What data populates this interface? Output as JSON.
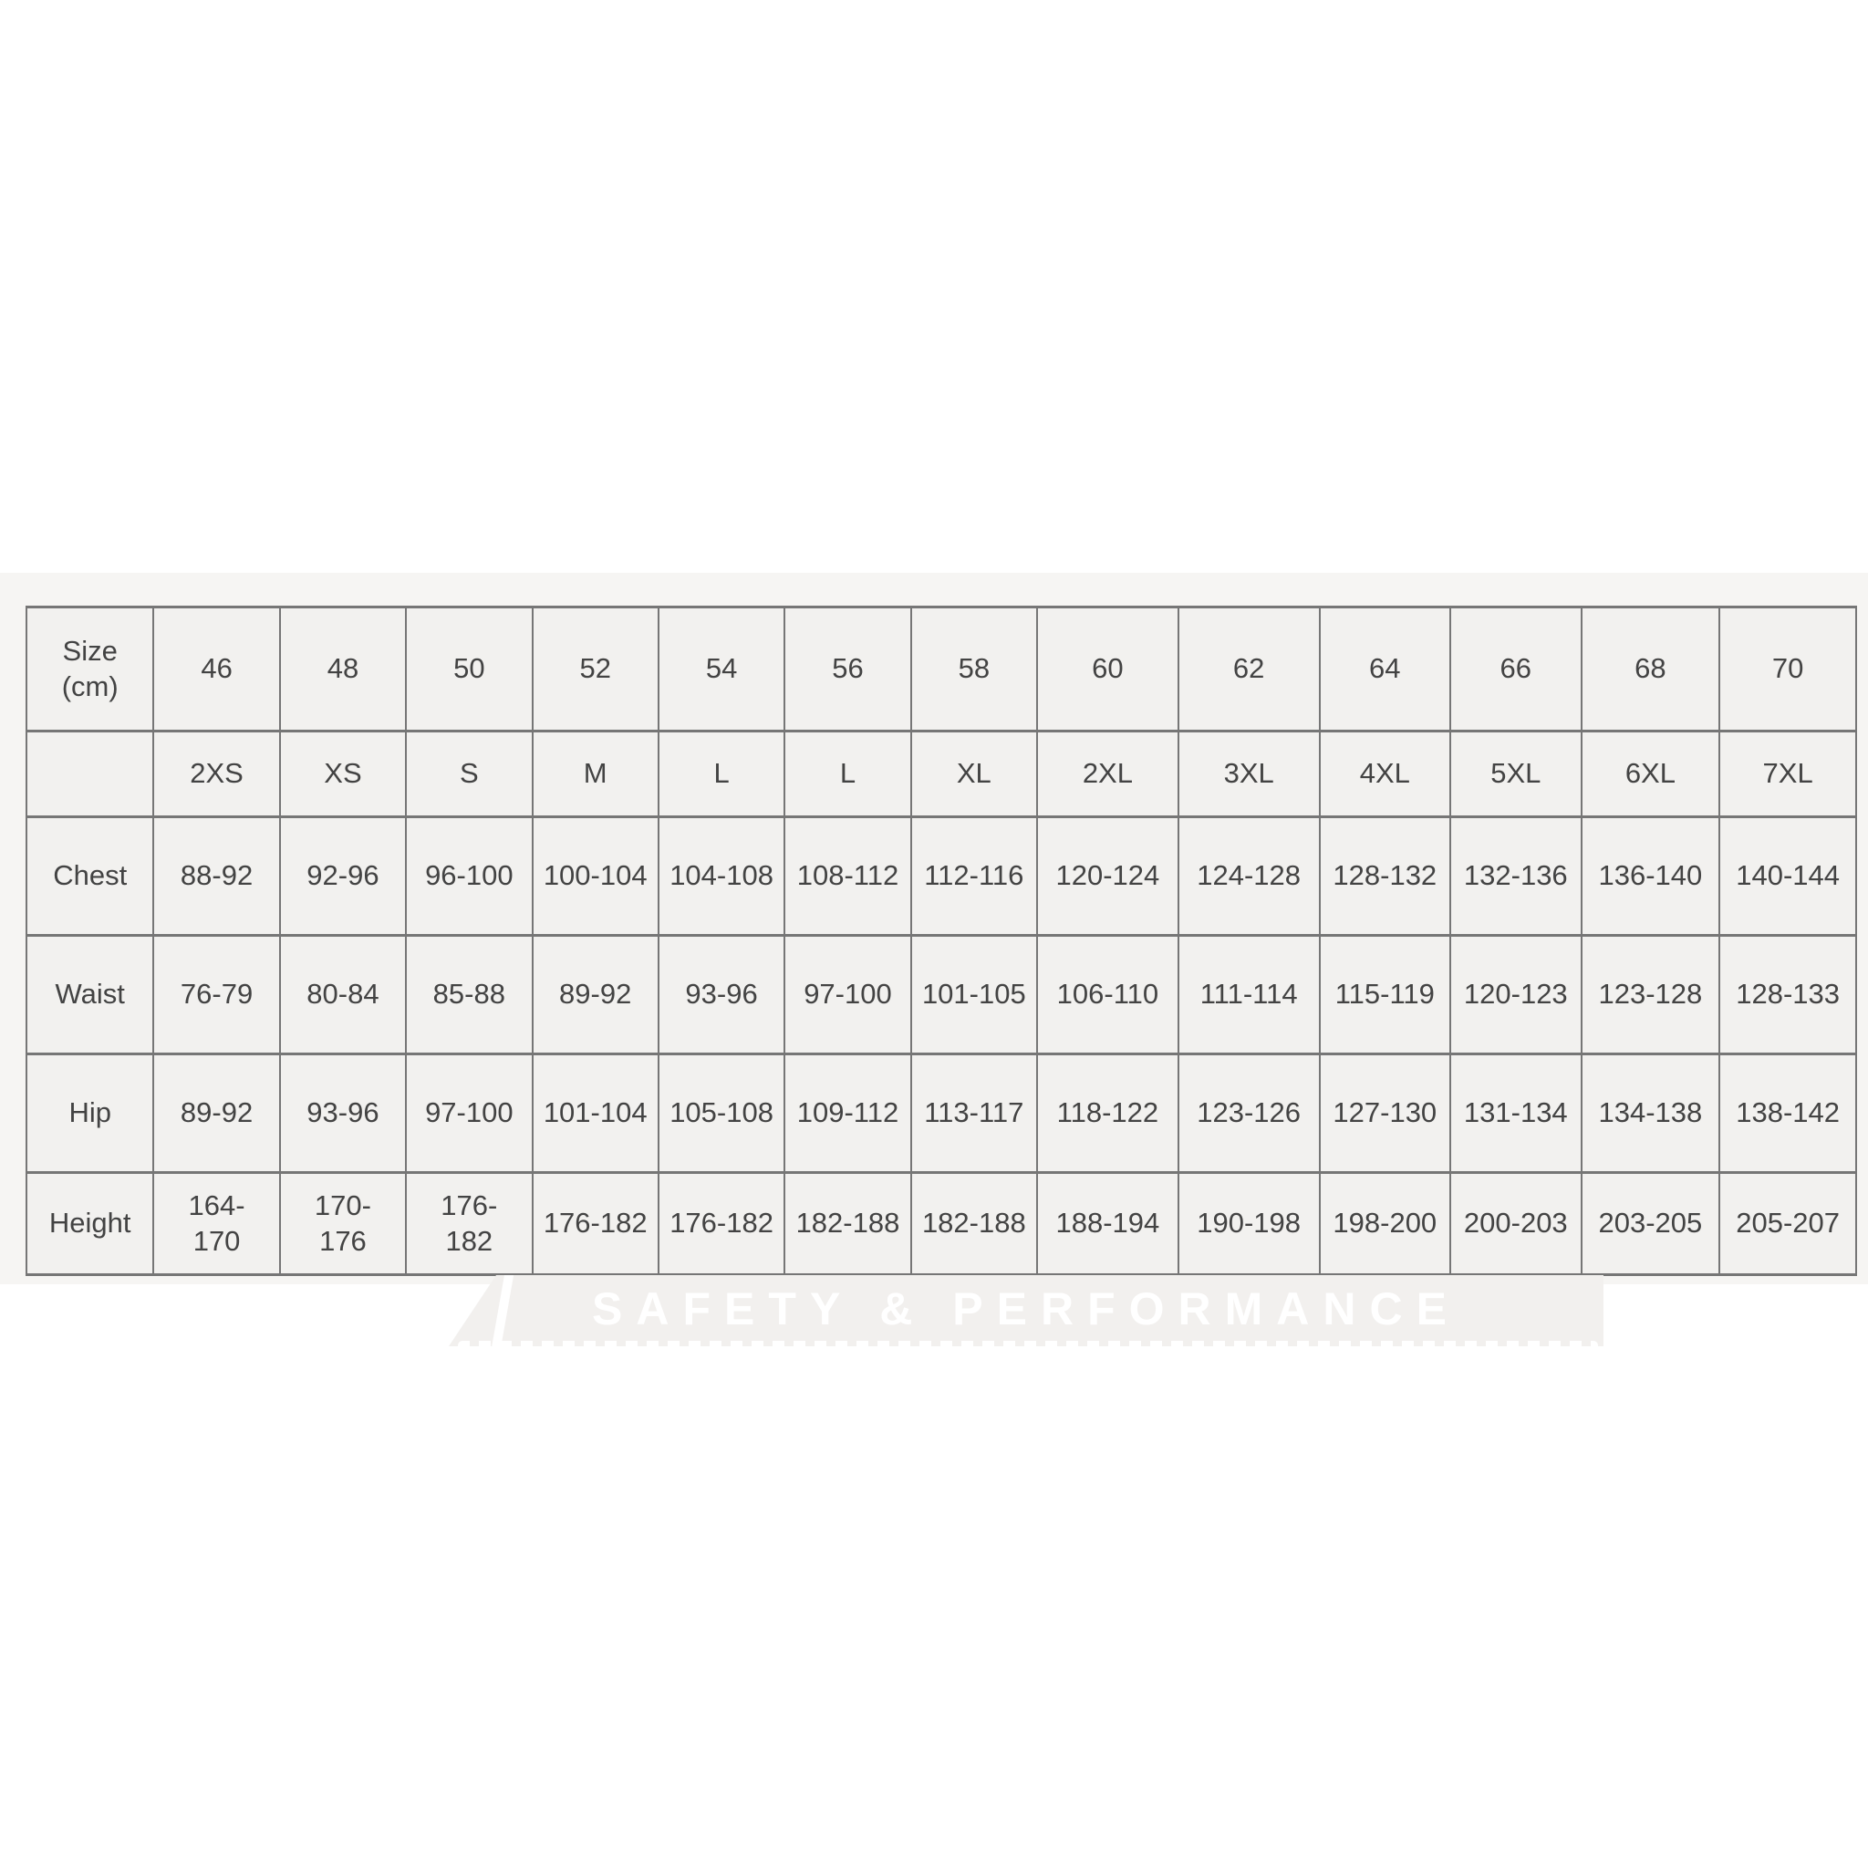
{
  "watermark": {
    "tagline": "SAFETY & PERFORMANCE"
  },
  "colors": {
    "table_bg": "#f2f1ef",
    "band_bg": "#f6f5f3",
    "grid_line": "#767676",
    "text": "#434343",
    "tagline_text": "#ffffff"
  },
  "chart_data": {
    "type": "table",
    "columns": [
      "Size\n(cm)",
      "46",
      "48",
      "50",
      "52",
      "54",
      "56",
      "58",
      "60",
      "62",
      "64",
      "66",
      "68",
      "70"
    ],
    "rows": [
      {
        "label": "",
        "cells": [
          "2XS",
          "XS",
          "S",
          "M",
          "L",
          "L",
          "XL",
          "2XL",
          "3XL",
          "4XL",
          "5XL",
          "6XL",
          "7XL"
        ]
      },
      {
        "label": "Chest",
        "cells": [
          "88-92",
          "92-96",
          "96-100",
          "100-104",
          "104-108",
          "108-112",
          "112-116",
          "120-124",
          "124-128",
          "128-132",
          "132-136",
          "136-140",
          "140-144"
        ]
      },
      {
        "label": "Waist",
        "cells": [
          "76-79",
          "80-84",
          "85-88",
          "89-92",
          "93-96",
          "97-100",
          "101-105",
          "106-110",
          "111-114",
          "115-119",
          "120-123",
          "123-128",
          "128-133"
        ]
      },
      {
        "label": "Hip",
        "cells": [
          "89-92",
          "93-96",
          "97-100",
          "101-104",
          "105-108",
          "109-112",
          "113-117",
          "118-122",
          "123-126",
          "127-130",
          "131-134",
          "134-138",
          "138-142"
        ]
      },
      {
        "label": "Height",
        "cells": [
          "164-\n170",
          "170-\n176",
          "176-\n182",
          "176-182",
          "176-182",
          "182-188",
          "182-188",
          "188-194",
          "190-198",
          "198-200",
          "200-203",
          "203-205",
          "205-207"
        ]
      }
    ]
  }
}
